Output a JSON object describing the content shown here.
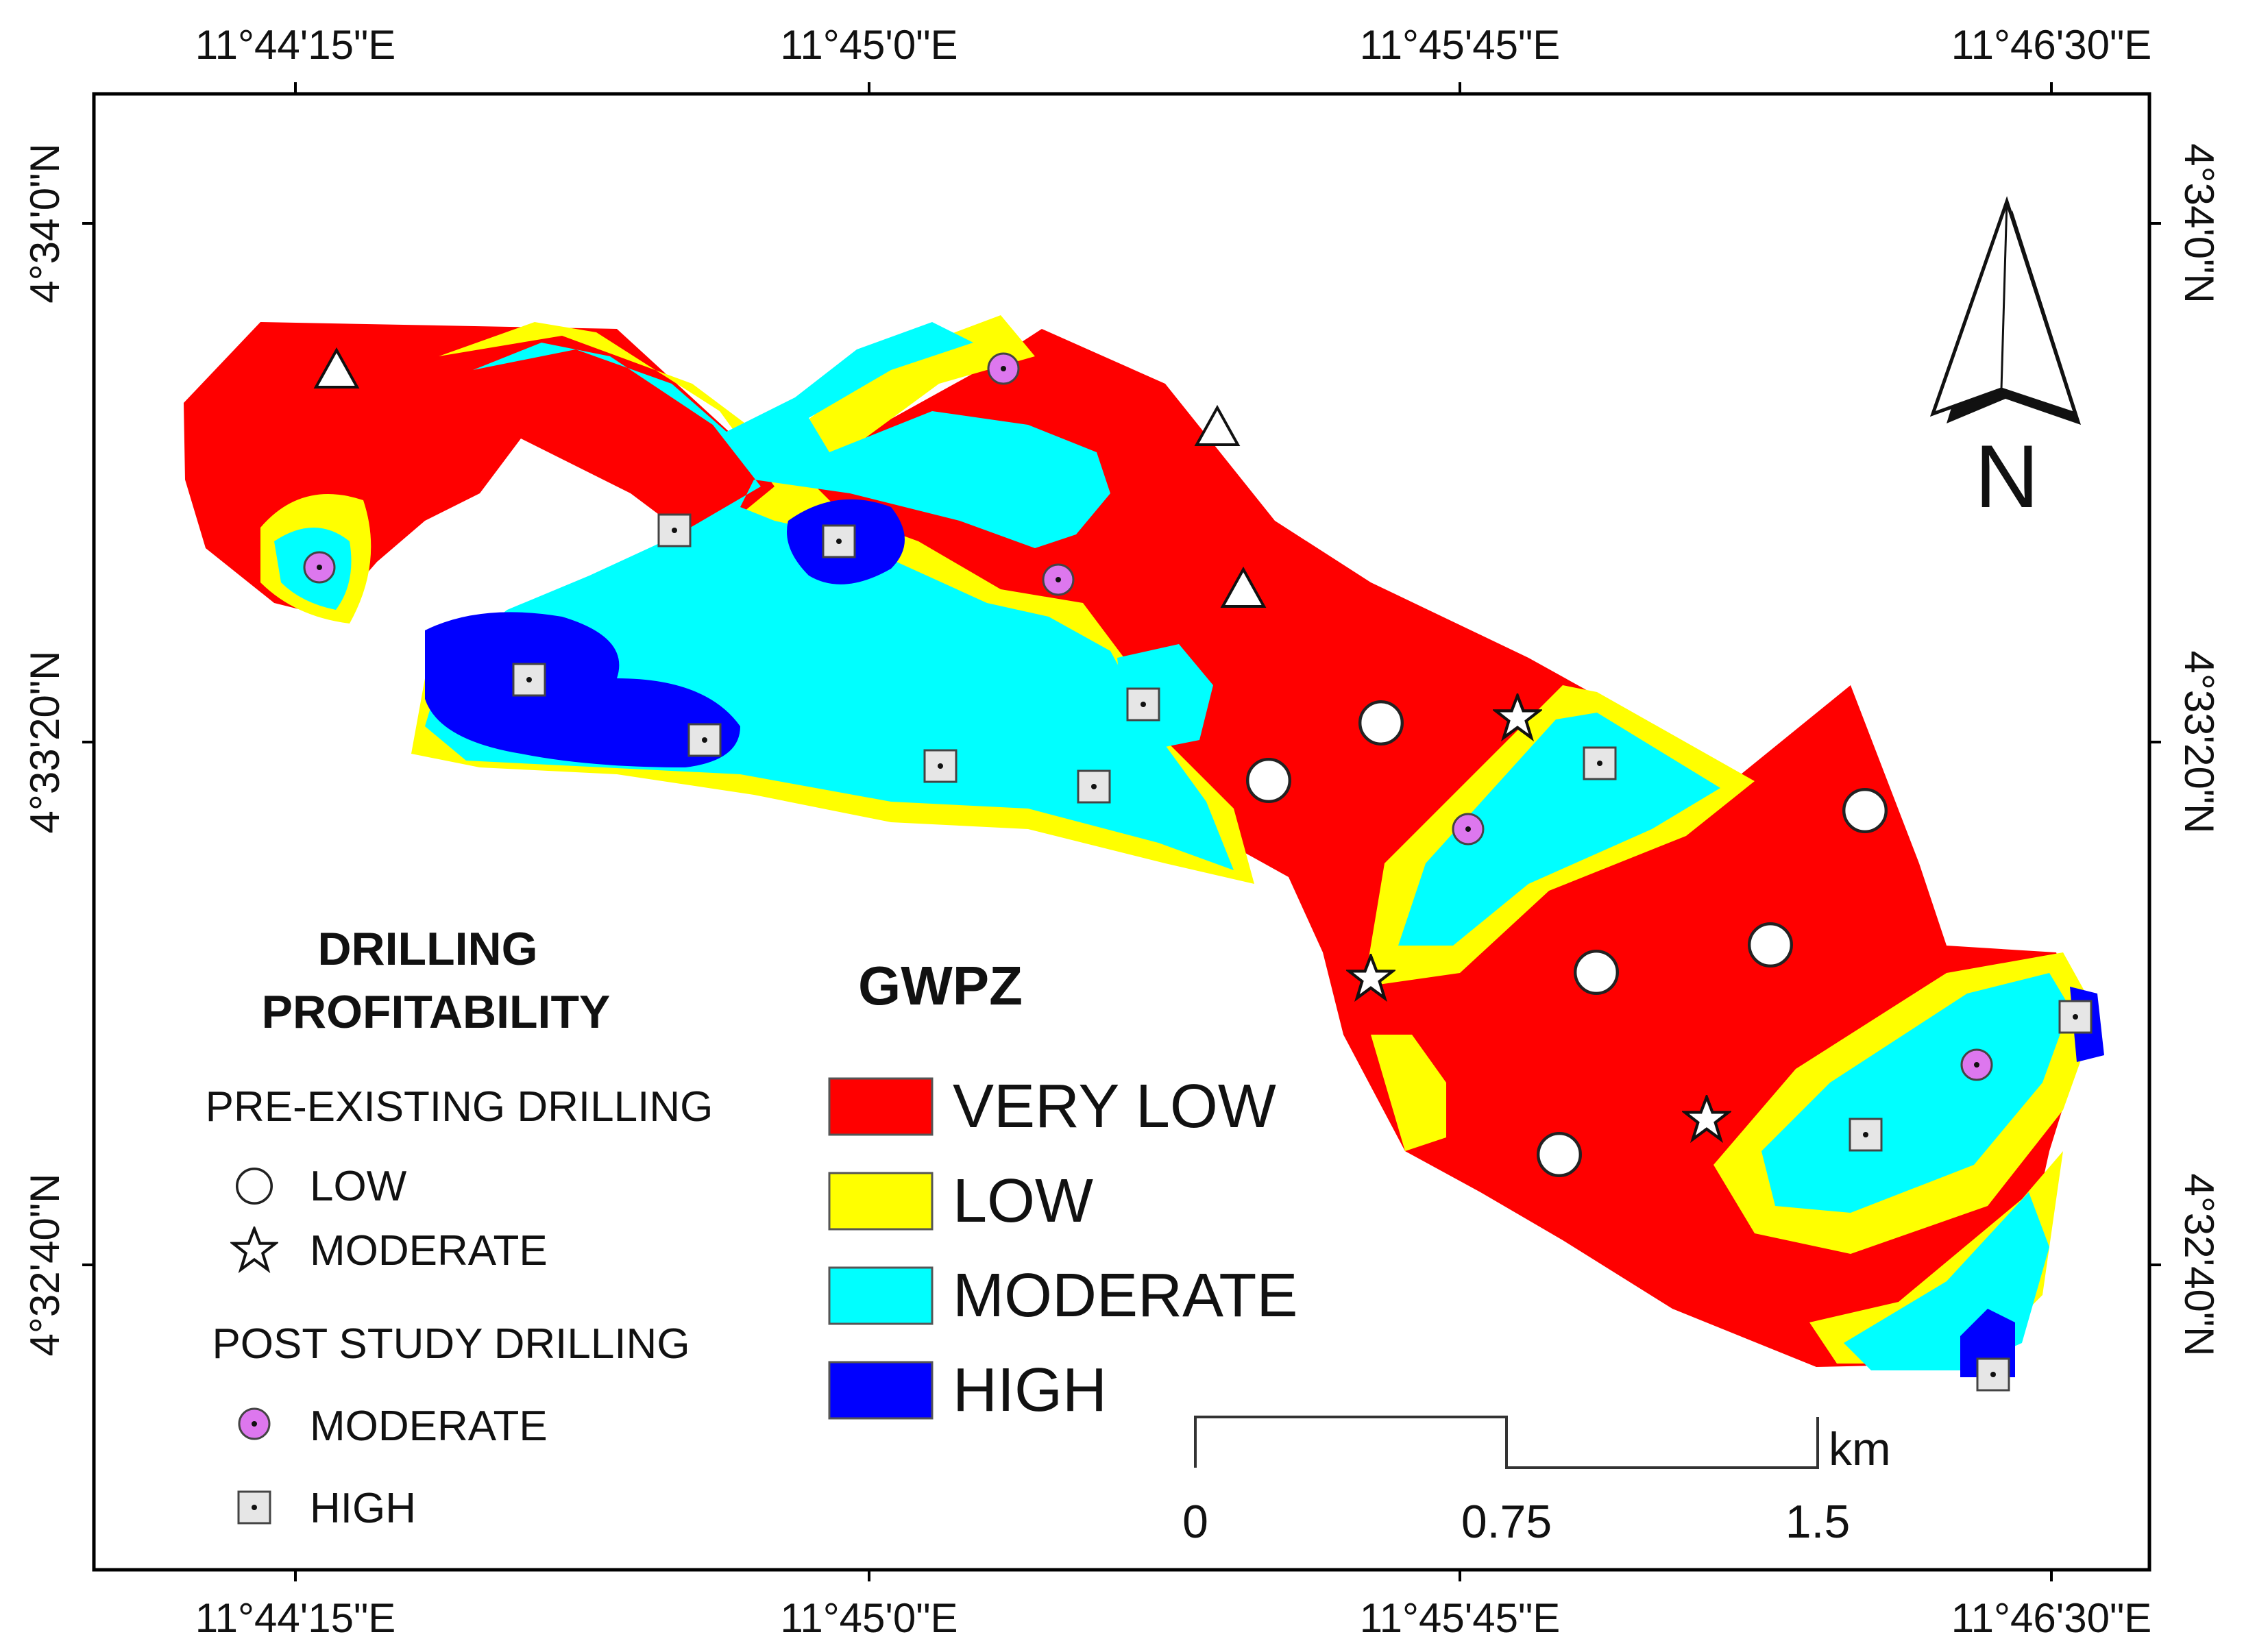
{
  "map": {
    "north_label": "N",
    "top_lon_labels": [
      "11°44'15\"E",
      "11°45'0\"E",
      "11°45'45\"E",
      "11°46'30\"E"
    ],
    "bottom_lon_labels": [
      "11°44'15\"E",
      "11°45'0\"E",
      "11°45'45\"E",
      "11°46'30\"E"
    ],
    "left_lat_labels": [
      "4°34'0\"N",
      "4°33'20\"N",
      "4°32'40\"N"
    ],
    "right_lat_labels": [
      "4°34'0\"N",
      "4°33'20\"N",
      "4°32'40\"N"
    ]
  },
  "drilling_legend": {
    "title_line1": "DRILLING",
    "title_line2": "PROFITABILITY",
    "pre_existing_heading": "PRE-EXISTING DRILLING",
    "pre_low": "LOW",
    "pre_moderate": "MODERATE",
    "post_heading": "POST STUDY DRILLING",
    "post_moderate": "MODERATE",
    "post_high": "HIGH"
  },
  "gwpz_legend": {
    "title": "GWPZ",
    "classes": [
      {
        "label": "VERY LOW",
        "color": "#ff0000"
      },
      {
        "label": "LOW",
        "color": "#ffff00"
      },
      {
        "label": "MODERATE",
        "color": "#00ffff"
      },
      {
        "label": "HIGH",
        "color": "#0000ff"
      }
    ]
  },
  "scale_bar": {
    "unit": "km",
    "labels": [
      "0",
      "0.75",
      "1.5"
    ]
  }
}
